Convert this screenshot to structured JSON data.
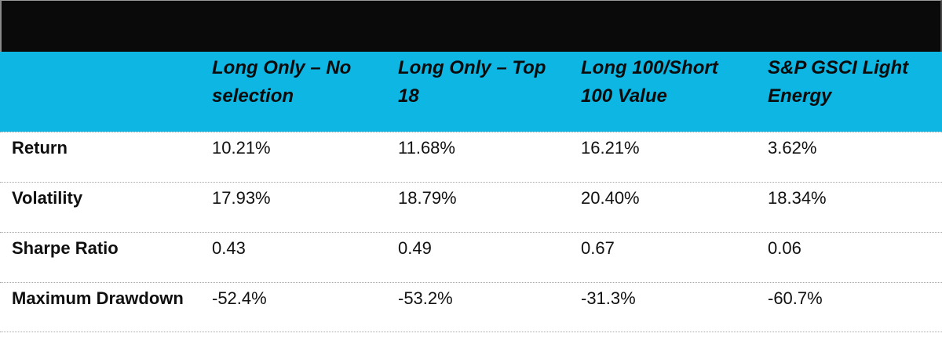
{
  "table": {
    "columns": [
      {
        "line1": "",
        "line2": ""
      },
      {
        "line1": "Long Only – No",
        "line2": "selection"
      },
      {
        "line1": "Long Only – Top",
        "line2": "18"
      },
      {
        "line1": "Long 100/Short",
        "line2": "100 Value"
      },
      {
        "line1": "S&P GSCI Light",
        "line2": "Energy"
      }
    ],
    "rows": [
      {
        "label": "Return",
        "values": [
          "10.21%",
          "11.68%",
          "16.21%",
          "3.62%"
        ]
      },
      {
        "label": "Volatility",
        "values": [
          "17.93%",
          "18.79%",
          "20.40%",
          "18.34%"
        ]
      },
      {
        "label": "Sharpe Ratio",
        "values": [
          "0.43",
          "0.49",
          "0.67",
          "0.06"
        ]
      },
      {
        "label": "Maximum Drawdown",
        "values": [
          "-52.4%",
          "-53.2%",
          "-31.3%",
          "-60.7%"
        ]
      }
    ],
    "colors": {
      "title_bar_bg": "#0a0a0a",
      "header_bg": "#0db6e3",
      "header_text": "#0b0b0b",
      "body_text": "#111111",
      "divider": "#a8a8a8"
    }
  },
  "chart_data": {
    "type": "table",
    "title": "",
    "columns": [
      "",
      "Long Only – No selection",
      "Long Only – Top 18",
      "Long 100/Short 100 Value",
      "S&P GSCI Light Energy"
    ],
    "categories": [
      "Return",
      "Volatility",
      "Sharpe Ratio",
      "Maximum Drawdown"
    ],
    "series": [
      {
        "name": "Long Only – No selection",
        "values": [
          "10.21%",
          "17.93%",
          "0.43",
          "-52.4%"
        ]
      },
      {
        "name": "Long Only – Top 18",
        "values": [
          "11.68%",
          "18.79%",
          "0.49",
          "-53.2%"
        ]
      },
      {
        "name": "Long 100/Short 100 Value",
        "values": [
          "16.21%",
          "20.40%",
          "0.67",
          "-31.3%"
        ]
      },
      {
        "name": "S&P GSCI Light Energy",
        "values": [
          "3.62%",
          "18.34%",
          "0.06",
          "-60.7%"
        ]
      }
    ],
    "layout_hints": {
      "header_fill": "#0db6e3",
      "title_bar_fill": "#0a0a0a",
      "row_dividers": "dotted"
    }
  }
}
